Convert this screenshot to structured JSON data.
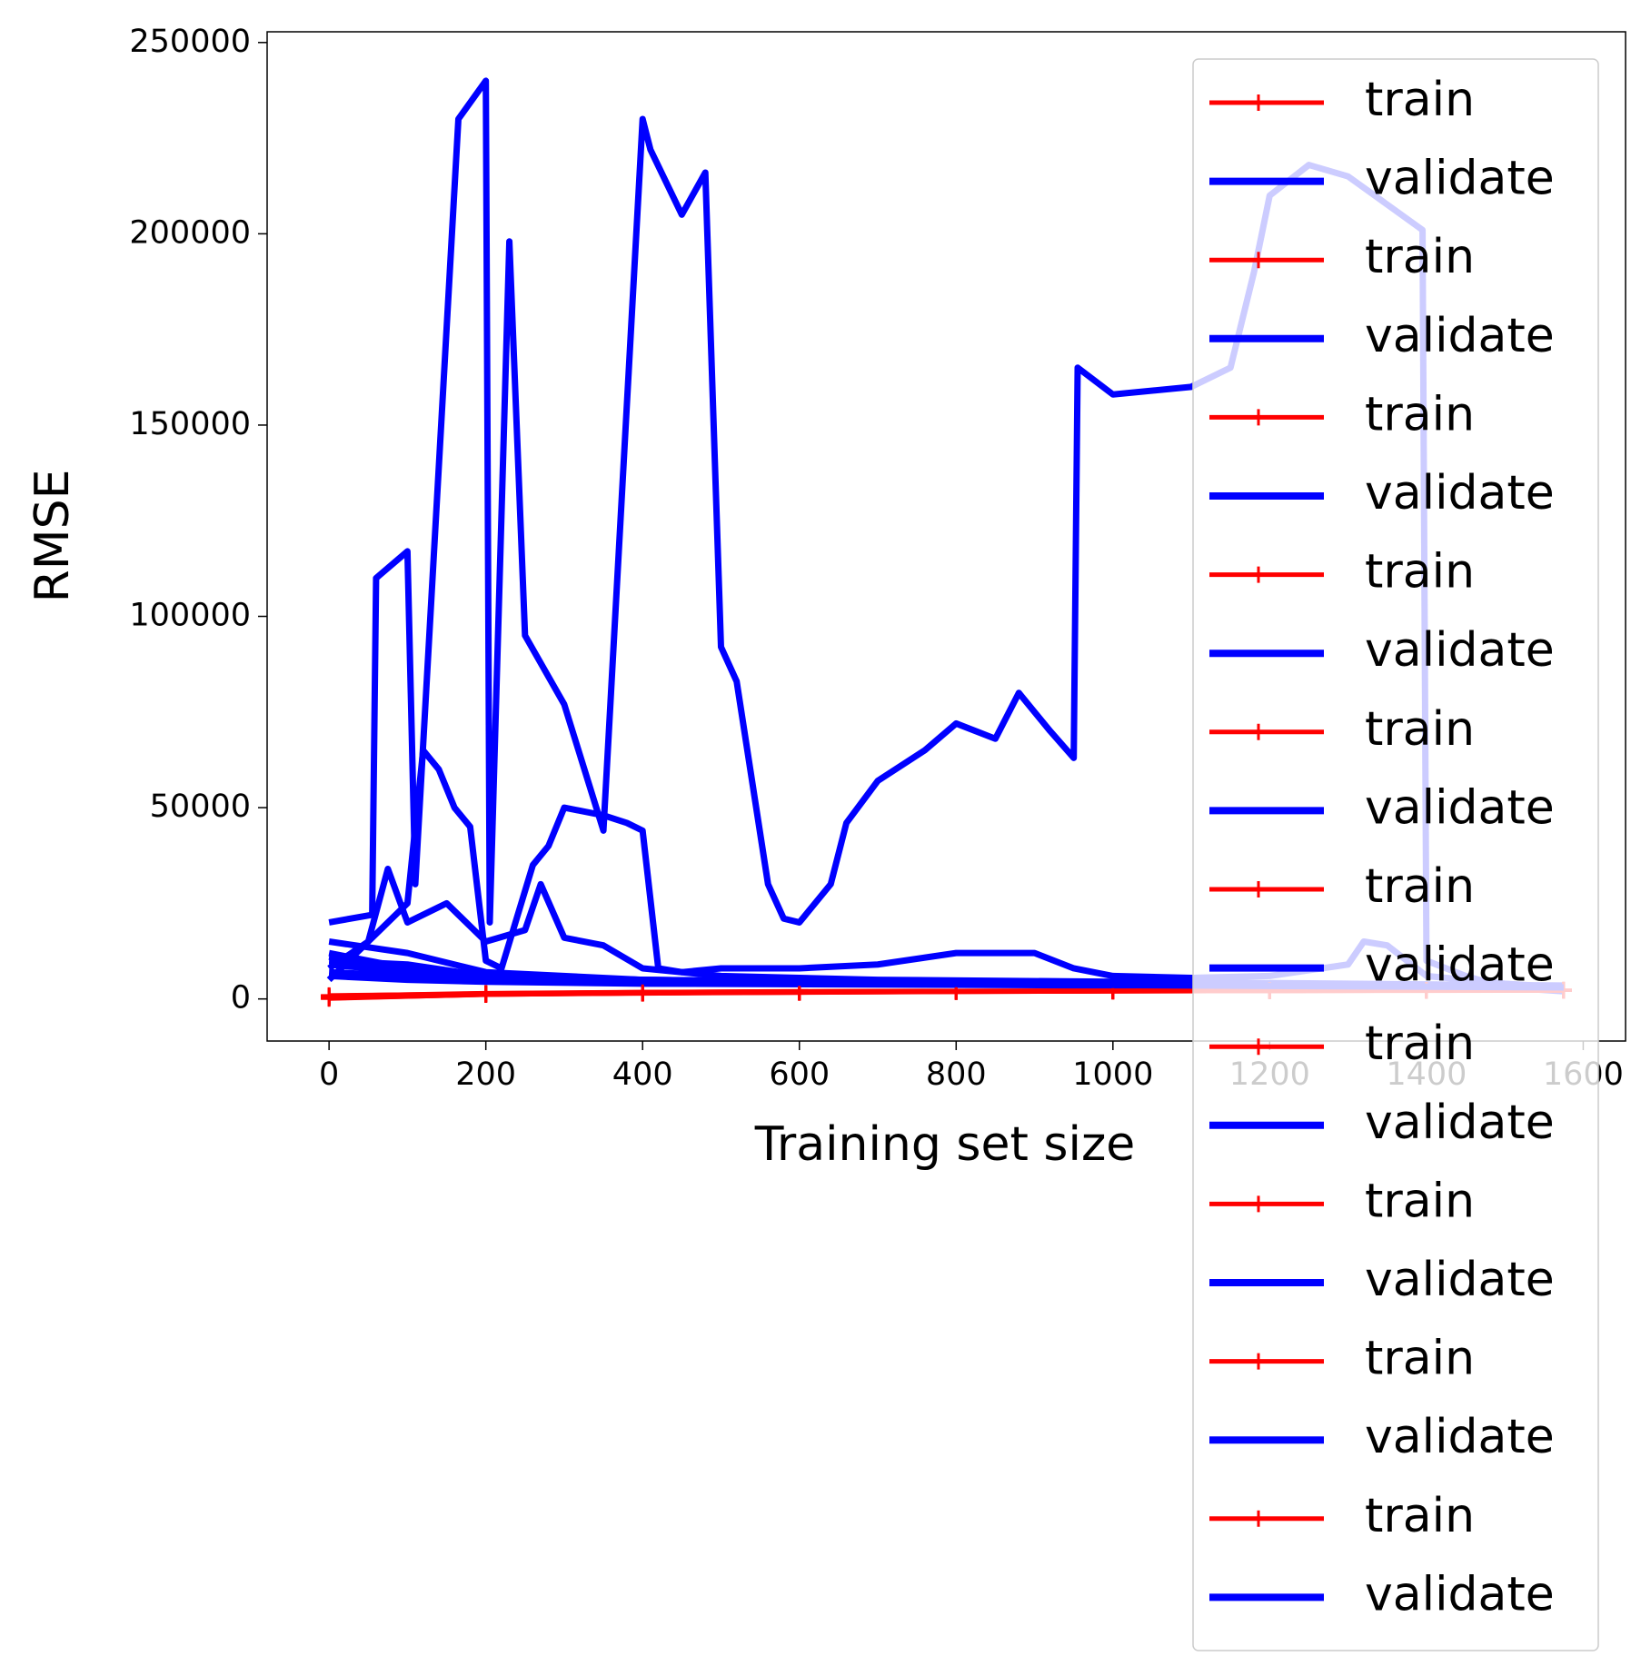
{
  "chart_data": {
    "type": "line",
    "x_label": "Training set size",
    "y_label": "RMSE",
    "xlim": [
      -79,
      1654
    ],
    "ylim": [
      -11000,
      252800
    ],
    "xticks": [
      0,
      200,
      400,
      600,
      800,
      1000,
      1200,
      1400,
      1600
    ],
    "yticks": [
      0,
      50000,
      100000,
      150000,
      200000,
      250000
    ],
    "grid": false,
    "legend": "upper right",
    "series": [
      {
        "name": "train",
        "color": "#ff0000",
        "marker": "+",
        "x": [
          0,
          200,
          400,
          600,
          800,
          1000,
          1200,
          1400,
          1575
        ],
        "values": [
          800,
          1500,
          1800,
          2000,
          2100,
          2200,
          2250,
          2300,
          2300
        ]
      },
      {
        "name": "validate",
        "color": "#0000ff",
        "x": [
          0,
          55,
          60,
          100,
          110,
          165,
          200,
          205,
          230,
          250,
          300,
          350,
          400,
          410,
          450,
          480,
          500,
          520,
          560,
          580,
          600,
          640,
          660,
          700,
          760,
          800,
          850,
          880,
          920,
          950,
          955,
          1000,
          1100,
          1150,
          1180,
          1200,
          1250,
          1300,
          1395,
          1400,
          1450,
          1500,
          1575
        ],
        "values": [
          20000,
          22000,
          110000,
          117000,
          30000,
          230000,
          240000,
          20000,
          198000,
          95000,
          77000,
          44000,
          230000,
          222000,
          205000,
          216000,
          92000,
          83000,
          30000,
          21000,
          20000,
          30000,
          46000,
          57000,
          65000,
          72000,
          68000,
          80000,
          70000,
          63000,
          165000,
          158000,
          160000,
          165000,
          190000,
          210000,
          218000,
          215000,
          201000,
          10000,
          6000,
          3000,
          2000
        ]
      },
      {
        "name": "train",
        "color": "#ff0000",
        "marker": "+",
        "x": [
          0,
          200,
          400,
          600,
          800,
          1000,
          1200,
          1400,
          1575
        ],
        "values": [
          500,
          1300,
          1700,
          1900,
          2000,
          2100,
          2200,
          2200,
          2250
        ]
      },
      {
        "name": "validate",
        "color": "#0000ff",
        "x": [
          0,
          100,
          120,
          140,
          160,
          180,
          200,
          220,
          260,
          280,
          300,
          350,
          380,
          400,
          420,
          450,
          500,
          600,
          700,
          800,
          900,
          950,
          1000,
          1100,
          1200,
          1300,
          1320,
          1350,
          1400,
          1500,
          1575
        ],
        "values": [
          5000,
          25000,
          65000,
          60000,
          50000,
          45000,
          10000,
          8000,
          35000,
          40000,
          50000,
          48000,
          46000,
          44000,
          8000,
          7000,
          8000,
          8000,
          9000,
          12000,
          12000,
          8000,
          6000,
          5500,
          6000,
          9000,
          15000,
          14000,
          6000,
          4000,
          3000
        ]
      },
      {
        "name": "train",
        "color": "#ff0000",
        "marker": "+",
        "x": [
          0,
          200,
          400,
          600,
          800,
          1000,
          1200,
          1400,
          1575
        ],
        "values": [
          300,
          1400,
          1600,
          1800,
          2000,
          2100,
          2150,
          2250,
          2300
        ]
      },
      {
        "name": "validate",
        "color": "#0000ff",
        "x": [
          0,
          50,
          75,
          100,
          150,
          200,
          250,
          270,
          300,
          350,
          400,
          500,
          700,
          1000,
          1575
        ],
        "values": [
          8000,
          15000,
          34000,
          20000,
          25000,
          15000,
          18000,
          30000,
          16000,
          14000,
          8000,
          6000,
          5000,
          4500,
          3500
        ]
      },
      {
        "name": "train",
        "color": "#ff0000",
        "marker": "+",
        "x": [
          0,
          200,
          400,
          600,
          800,
          1000,
          1200,
          1400,
          1575
        ],
        "values": [
          600,
          1200,
          1500,
          1700,
          1900,
          2000,
          2100,
          2200,
          2200
        ]
      },
      {
        "name": "validate",
        "color": "#0000ff",
        "x": [
          0,
          100,
          200,
          400,
          800,
          1200,
          1575
        ],
        "values": [
          10000,
          9000,
          6000,
          5000,
          4000,
          3500,
          3000
        ]
      },
      {
        "name": "train",
        "color": "#ff0000",
        "marker": "+",
        "x": [
          0,
          200,
          400,
          600,
          800,
          1000,
          1200,
          1400,
          1575
        ],
        "values": [
          200,
          1100,
          1500,
          1800,
          1900,
          2050,
          2150,
          2200,
          2250
        ]
      },
      {
        "name": "validate",
        "color": "#0000ff",
        "x": [
          0,
          100,
          200,
          400,
          800,
          1200,
          1575
        ],
        "values": [
          15000,
          12000,
          7000,
          5000,
          4000,
          3500,
          3200
        ]
      },
      {
        "name": "train",
        "color": "#ff0000",
        "marker": "+",
        "x": [
          0,
          200,
          400,
          600,
          800,
          1000,
          1200,
          1400,
          1575
        ],
        "values": [
          700,
          1400,
          1700,
          1900,
          2000,
          2150,
          2200,
          2300,
          2350
        ]
      },
      {
        "name": "validate",
        "color": "#0000ff",
        "x": [
          0,
          100,
          200,
          400,
          800,
          1200,
          1575
        ],
        "values": [
          7000,
          6000,
          5000,
          4500,
          4000,
          3500,
          3000
        ]
      },
      {
        "name": "train",
        "color": "#ff0000",
        "marker": "+",
        "x": [
          0,
          200,
          400,
          600,
          800,
          1000,
          1200,
          1400,
          1575
        ],
        "values": [
          400,
          1250,
          1550,
          1750,
          1950,
          2050,
          2150,
          2250,
          2300
        ]
      },
      {
        "name": "validate",
        "color": "#0000ff",
        "x": [
          0,
          100,
          200,
          400,
          800,
          1200,
          1575
        ],
        "values": [
          12000,
          8000,
          6000,
          5000,
          4200,
          3800,
          3300
        ]
      },
      {
        "name": "train",
        "color": "#ff0000",
        "marker": "+",
        "x": [
          0,
          200,
          400,
          600,
          800,
          1000,
          1200,
          1400,
          1575
        ],
        "values": [
          900,
          1350,
          1650,
          1850,
          2050,
          2100,
          2200,
          2250,
          2300
        ]
      },
      {
        "name": "validate",
        "color": "#0000ff",
        "x": [
          0,
          100,
          200,
          400,
          800,
          1200,
          1575
        ],
        "values": [
          9000,
          7000,
          5500,
          4800,
          4100,
          3600,
          3100
        ]
      },
      {
        "name": "train",
        "color": "#ff0000",
        "marker": "+",
        "x": [
          0,
          200,
          400,
          600,
          800,
          1000,
          1200,
          1400,
          1575
        ],
        "values": [
          100,
          1150,
          1450,
          1650,
          1850,
          2000,
          2100,
          2150,
          2200
        ]
      },
      {
        "name": "validate",
        "color": "#0000ff",
        "x": [
          0,
          100,
          200,
          400,
          800,
          1200,
          1575
        ],
        "values": [
          6000,
          5000,
          4500,
          4000,
          3700,
          3300,
          2900
        ]
      },
      {
        "name": "train",
        "color": "#ff0000",
        "marker": "+",
        "x": [
          0,
          200,
          400,
          600,
          800,
          1000,
          1200,
          1400,
          1575
        ],
        "values": [
          650,
          1450,
          1750,
          1950,
          2050,
          2150,
          2250,
          2300,
          2350
        ]
      },
      {
        "name": "validate",
        "color": "#0000ff",
        "x": [
          0,
          100,
          200,
          400,
          800,
          1200,
          1575
        ],
        "values": [
          11000,
          7500,
          5200,
          4600,
          3900,
          3400,
          3000
        ]
      }
    ]
  }
}
